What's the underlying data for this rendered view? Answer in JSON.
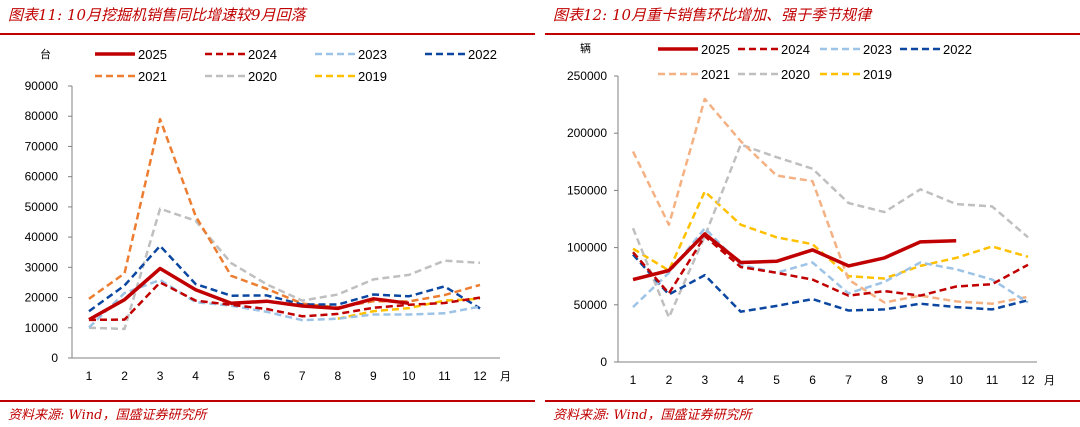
{
  "chart_data": [
    {
      "type": "line",
      "title": "图表11: 10月挖掘机销售同比增速较9月回落",
      "ylabel": "台",
      "xlabel": "月",
      "source": "资料来源: Wind，国盛证券研究所",
      "categories": [
        "1",
        "2",
        "3",
        "4",
        "5",
        "6",
        "7",
        "8",
        "9",
        "10",
        "11",
        "12"
      ],
      "ylim": [
        0,
        90000
      ],
      "yticks": [
        0,
        10000,
        20000,
        30000,
        40000,
        50000,
        60000,
        70000,
        80000,
        90000
      ],
      "grid": false,
      "legend": "top",
      "series": [
        {
          "name": "2025",
          "color": "#c00000",
          "dash": "solid",
          "values": [
            12700,
            19300,
            29600,
            22600,
            18100,
            18800,
            17200,
            16400,
            19600,
            18100,
            null,
            null
          ]
        },
        {
          "name": "2024",
          "color": "#c00000",
          "dash": "dashed",
          "values": [
            12600,
            12700,
            25000,
            19000,
            17600,
            16200,
            13800,
            14600,
            16600,
            17600,
            18200,
            20000
          ]
        },
        {
          "name": "2023",
          "color": "#9dc3e6",
          "dash": "dashed",
          "values": [
            10100,
            21500,
            25800,
            18500,
            17300,
            15300,
            12500,
            13000,
            14400,
            14400,
            14800,
            17000
          ]
        },
        {
          "name": "2022",
          "color": "#0b47a1",
          "dash": "dashed",
          "values": [
            15500,
            24000,
            37100,
            24500,
            20600,
            20700,
            17700,
            17700,
            21000,
            20400,
            23700,
            16400
          ]
        },
        {
          "name": "2021",
          "color": "#ed7d31",
          "dash": "dashed",
          "values": [
            19600,
            28000,
            79000,
            47000,
            27200,
            22900,
            18000,
            16700,
            18800,
            18700,
            20800,
            24200
          ]
        },
        {
          "name": "2020",
          "color": "#bfbfbf",
          "dash": "dashed",
          "values": [
            10000,
            9600,
            49400,
            45400,
            31400,
            24400,
            19000,
            21000,
            26000,
            27500,
            32200,
            31500
          ]
        },
        {
          "name": "2019",
          "color": "#ffc000",
          "dash": "dashed",
          "values": [
            null,
            null,
            null,
            null,
            null,
            null,
            null,
            13000,
            15500,
            16500,
            19000,
            19600
          ]
        }
      ]
    },
    {
      "type": "line",
      "title": "图表12: 10月重卡销售环比增加、强于季节规律",
      "ylabel": "辆",
      "xlabel": "月",
      "source": "资料来源: Wind，国盛证券研究所",
      "categories": [
        "1",
        "2",
        "3",
        "4",
        "5",
        "6",
        "7",
        "8",
        "9",
        "10",
        "11",
        "12"
      ],
      "ylim": [
        0,
        250000
      ],
      "yticks": [
        0,
        50000,
        100000,
        150000,
        200000,
        250000
      ],
      "grid": false,
      "legend": "top",
      "series": [
        {
          "name": "2025",
          "color": "#c00000",
          "dash": "solid",
          "values": [
            72000,
            80000,
            112000,
            87000,
            88000,
            98000,
            84000,
            91000,
            105000,
            106000,
            null,
            null
          ]
        },
        {
          "name": "2024",
          "color": "#c00000",
          "dash": "dashed",
          "values": [
            96000,
            60000,
            110000,
            83000,
            78000,
            72000,
            58000,
            62000,
            58000,
            66000,
            68000,
            85000
          ]
        },
        {
          "name": "2023",
          "color": "#9dc3e6",
          "dash": "dashed",
          "values": [
            48000,
            78000,
            117000,
            85000,
            78000,
            87000,
            60000,
            70000,
            87000,
            81000,
            72000,
            52000
          ]
        },
        {
          "name": "2022",
          "color": "#0b47a1",
          "dash": "dashed",
          "values": [
            94000,
            59000,
            76000,
            44000,
            49000,
            55000,
            45000,
            46000,
            51000,
            48000,
            46000,
            54000
          ]
        },
        {
          "name": "2021",
          "color": "#f4b183",
          "dash": "dashed",
          "values": [
            184000,
            120000,
            230000,
            193000,
            163000,
            158000,
            72000,
            52000,
            58000,
            53000,
            51000,
            57000
          ]
        },
        {
          "name": "2020",
          "color": "#bfbfbf",
          "dash": "dashed",
          "values": [
            117000,
            39000,
            110000,
            190000,
            179000,
            169000,
            139000,
            131000,
            151000,
            138000,
            136000,
            109000
          ]
        },
        {
          "name": "2019",
          "color": "#ffc000",
          "dash": "dashed",
          "values": [
            99000,
            80000,
            149000,
            120000,
            109000,
            103000,
            75000,
            73000,
            84000,
            91000,
            101000,
            92000
          ]
        }
      ]
    }
  ]
}
